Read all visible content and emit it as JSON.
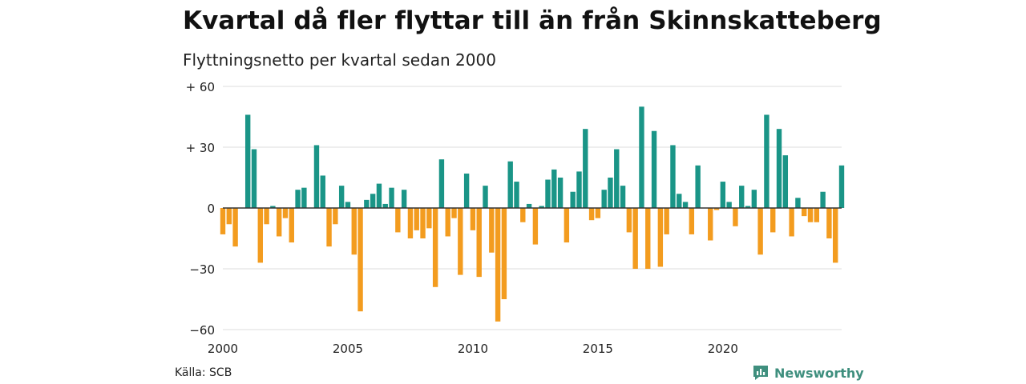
{
  "title": "Kvartal då fler flyttar till än från Skinnskatteberg",
  "subtitle": "Flyttningsnetto per kvartal sedan 2000",
  "source": "Källa: SCB",
  "brand": {
    "name": "Newsworthy",
    "icon": "newsworthy-logo-icon",
    "color": "#3f8f7e"
  },
  "colors": {
    "positive": "#1a9587",
    "negative": "#f39c1f",
    "grid": "#dddddd",
    "zero": "#333333"
  },
  "chart_data": {
    "type": "bar",
    "title": "Kvartal då fler flyttar till än från Skinnskatteberg",
    "subtitle": "Flyttningsnetto per kvartal sedan 2000",
    "ylim": [
      -60,
      60
    ],
    "xlim": [
      2000,
      2024.75
    ],
    "grid": true,
    "y_ticks": [
      60,
      30,
      0,
      -30,
      -60
    ],
    "y_tick_labels": [
      "+ 60",
      "+ 30",
      "0",
      "−30",
      "−60"
    ],
    "x_ticks": [
      2000,
      2005,
      2010,
      2015,
      2020
    ],
    "x_tick_labels": [
      "2000",
      "2005",
      "2010",
      "2015",
      "2020"
    ],
    "quarters": [
      "2000 K1",
      "2000 K2",
      "2000 K3",
      "2000 K4",
      "2001 K1",
      "2001 K2",
      "2001 K3",
      "2001 K4",
      "2002 K1",
      "2002 K2",
      "2002 K3",
      "2002 K4",
      "2003 K1",
      "2003 K2",
      "2003 K3",
      "2003 K4",
      "2004 K1",
      "2004 K2",
      "2004 K3",
      "2004 K4",
      "2005 K1",
      "2005 K2",
      "2005 K3",
      "2005 K4",
      "2006 K1",
      "2006 K2",
      "2006 K3",
      "2006 K4",
      "2007 K1",
      "2007 K2",
      "2007 K3",
      "2007 K4",
      "2008 K1",
      "2008 K2",
      "2008 K3",
      "2008 K4",
      "2009 K1",
      "2009 K2",
      "2009 K3",
      "2009 K4",
      "2010 K1",
      "2010 K2",
      "2010 K3",
      "2010 K4",
      "2011 K1",
      "2011 K2",
      "2011 K3",
      "2011 K4",
      "2012 K1",
      "2012 K2",
      "2012 K3",
      "2012 K4",
      "2013 K1",
      "2013 K2",
      "2013 K3",
      "2013 K4",
      "2014 K1",
      "2014 K2",
      "2014 K3",
      "2014 K4",
      "2015 K1",
      "2015 K2",
      "2015 K3",
      "2015 K4",
      "2016 K1",
      "2016 K2",
      "2016 K3",
      "2016 K4",
      "2017 K1",
      "2017 K2",
      "2017 K3",
      "2017 K4",
      "2018 K1",
      "2018 K2",
      "2018 K3",
      "2018 K4",
      "2019 K1",
      "2019 K2",
      "2019 K3",
      "2019 K4",
      "2020 K1",
      "2020 K2",
      "2020 K3",
      "2020 K4",
      "2021 K1",
      "2021 K2",
      "2021 K3",
      "2021 K4",
      "2022 K1",
      "2022 K2",
      "2022 K3",
      "2022 K4",
      "2023 K1",
      "2023 K2",
      "2023 K3",
      "2023 K4",
      "2024 K1",
      "2024 K2",
      "2024 K3",
      "2024 K4"
    ],
    "values": [
      -13,
      -8,
      -19,
      0,
      46,
      29,
      -27,
      -8,
      1,
      -14,
      -5,
      -17,
      9,
      10,
      0,
      31,
      16,
      -19,
      -8,
      11,
      3,
      -23,
      -51,
      4,
      7,
      12,
      2,
      10,
      -12,
      9,
      -15,
      -11,
      -15,
      -10,
      -39,
      24,
      -14,
      -5,
      -33,
      17,
      -11,
      -34,
      11,
      -22,
      -56,
      -45,
      23,
      13,
      -7,
      2,
      -18,
      1,
      14,
      19,
      15,
      -17,
      8,
      18,
      39,
      -6,
      -5,
      9,
      15,
      29,
      11,
      -12,
      -30,
      50,
      -30,
      38,
      -29,
      -13,
      31,
      7,
      3,
      -13,
      21,
      0,
      -16,
      -1,
      13,
      3,
      -9,
      11,
      1,
      9,
      -23,
      46,
      -12,
      39,
      26,
      -14,
      5,
      -4,
      -7,
      -7,
      8,
      -15,
      -27,
      21
    ]
  }
}
